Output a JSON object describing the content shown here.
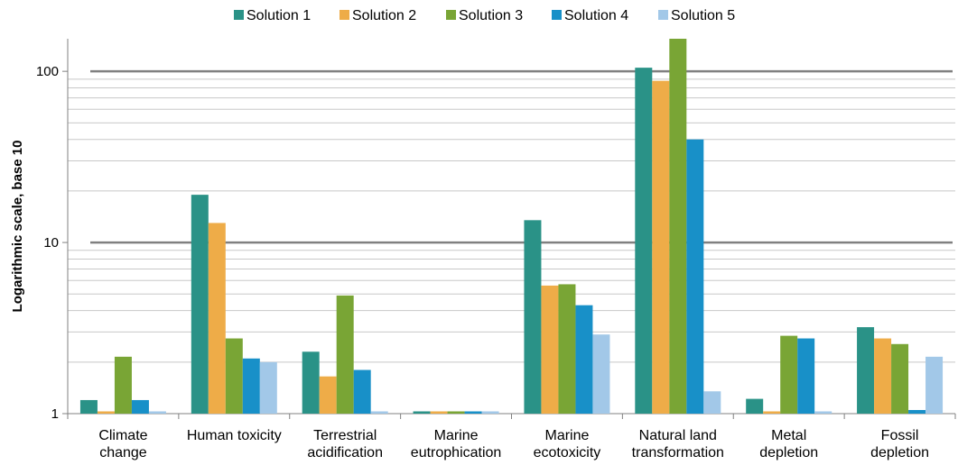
{
  "chart_data": {
    "type": "bar",
    "title": "",
    "xlabel": "",
    "ylabel": "Logarithmic scale, base 10",
    "yscale": "log10",
    "ylim": [
      1,
      155
    ],
    "yticks": [
      1,
      10,
      100
    ],
    "ytick_labels": [
      "1",
      "10",
      "100"
    ],
    "grid": true,
    "legend_position": "top",
    "categories": [
      [
        "Climate",
        "change"
      ],
      [
        "Human toxicity"
      ],
      [
        "Terrestrial",
        "acidification"
      ],
      [
        "Marine",
        "eutrophication"
      ],
      [
        "Marine",
        "ecotoxicity"
      ],
      [
        "Natural land",
        "transformation"
      ],
      [
        "Metal",
        "depletion"
      ],
      [
        "Fossil",
        "depletion"
      ]
    ],
    "series": [
      {
        "name": "Solution 1",
        "color": "#2a9287",
        "values": [
          1.2,
          19,
          2.3,
          1.0,
          13.5,
          105,
          1.22,
          3.2
        ]
      },
      {
        "name": "Solution 2",
        "color": "#eeac48",
        "values": [
          1.0,
          13,
          1.65,
          1.0,
          5.6,
          88,
          1.0,
          2.75
        ]
      },
      {
        "name": "Solution 3",
        "color": "#79a535",
        "values": [
          2.15,
          2.75,
          4.9,
          1.0,
          5.7,
          155,
          2.85,
          2.55
        ]
      },
      {
        "name": "Solution 4",
        "color": "#1890c8",
        "values": [
          1.2,
          2.1,
          1.8,
          1.0,
          4.3,
          40,
          2.75,
          1.05
        ]
      },
      {
        "name": "Solution 5",
        "color": "#a2c8e8",
        "values": [
          1.0,
          2.0,
          1.0,
          1.0,
          2.9,
          1.35,
          1.0,
          2.15
        ]
      }
    ]
  }
}
